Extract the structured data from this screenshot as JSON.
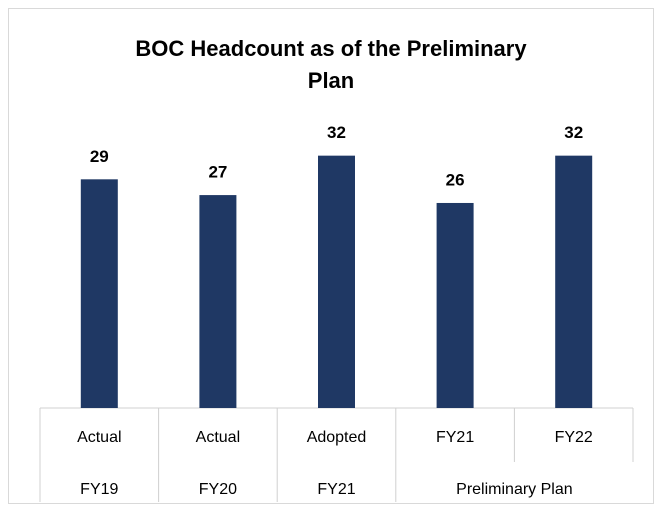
{
  "chart_data": {
    "type": "bar",
    "title_lines": [
      "BOC Headcount as of the Preliminary",
      "Plan"
    ],
    "groups": [
      {
        "name": "FY19",
        "categories": [
          "Actual"
        ],
        "values": [
          29
        ]
      },
      {
        "name": "FY20",
        "categories": [
          "Actual"
        ],
        "values": [
          27
        ]
      },
      {
        "name": "FY21",
        "categories": [
          "Adopted"
        ],
        "values": [
          32
        ]
      },
      {
        "name": "Preliminary Plan",
        "categories": [
          "FY21",
          "FY22"
        ],
        "values": [
          26,
          32
        ]
      }
    ],
    "color": "#1f3864",
    "ylim": [
      0,
      35
    ],
    "grid": false
  }
}
